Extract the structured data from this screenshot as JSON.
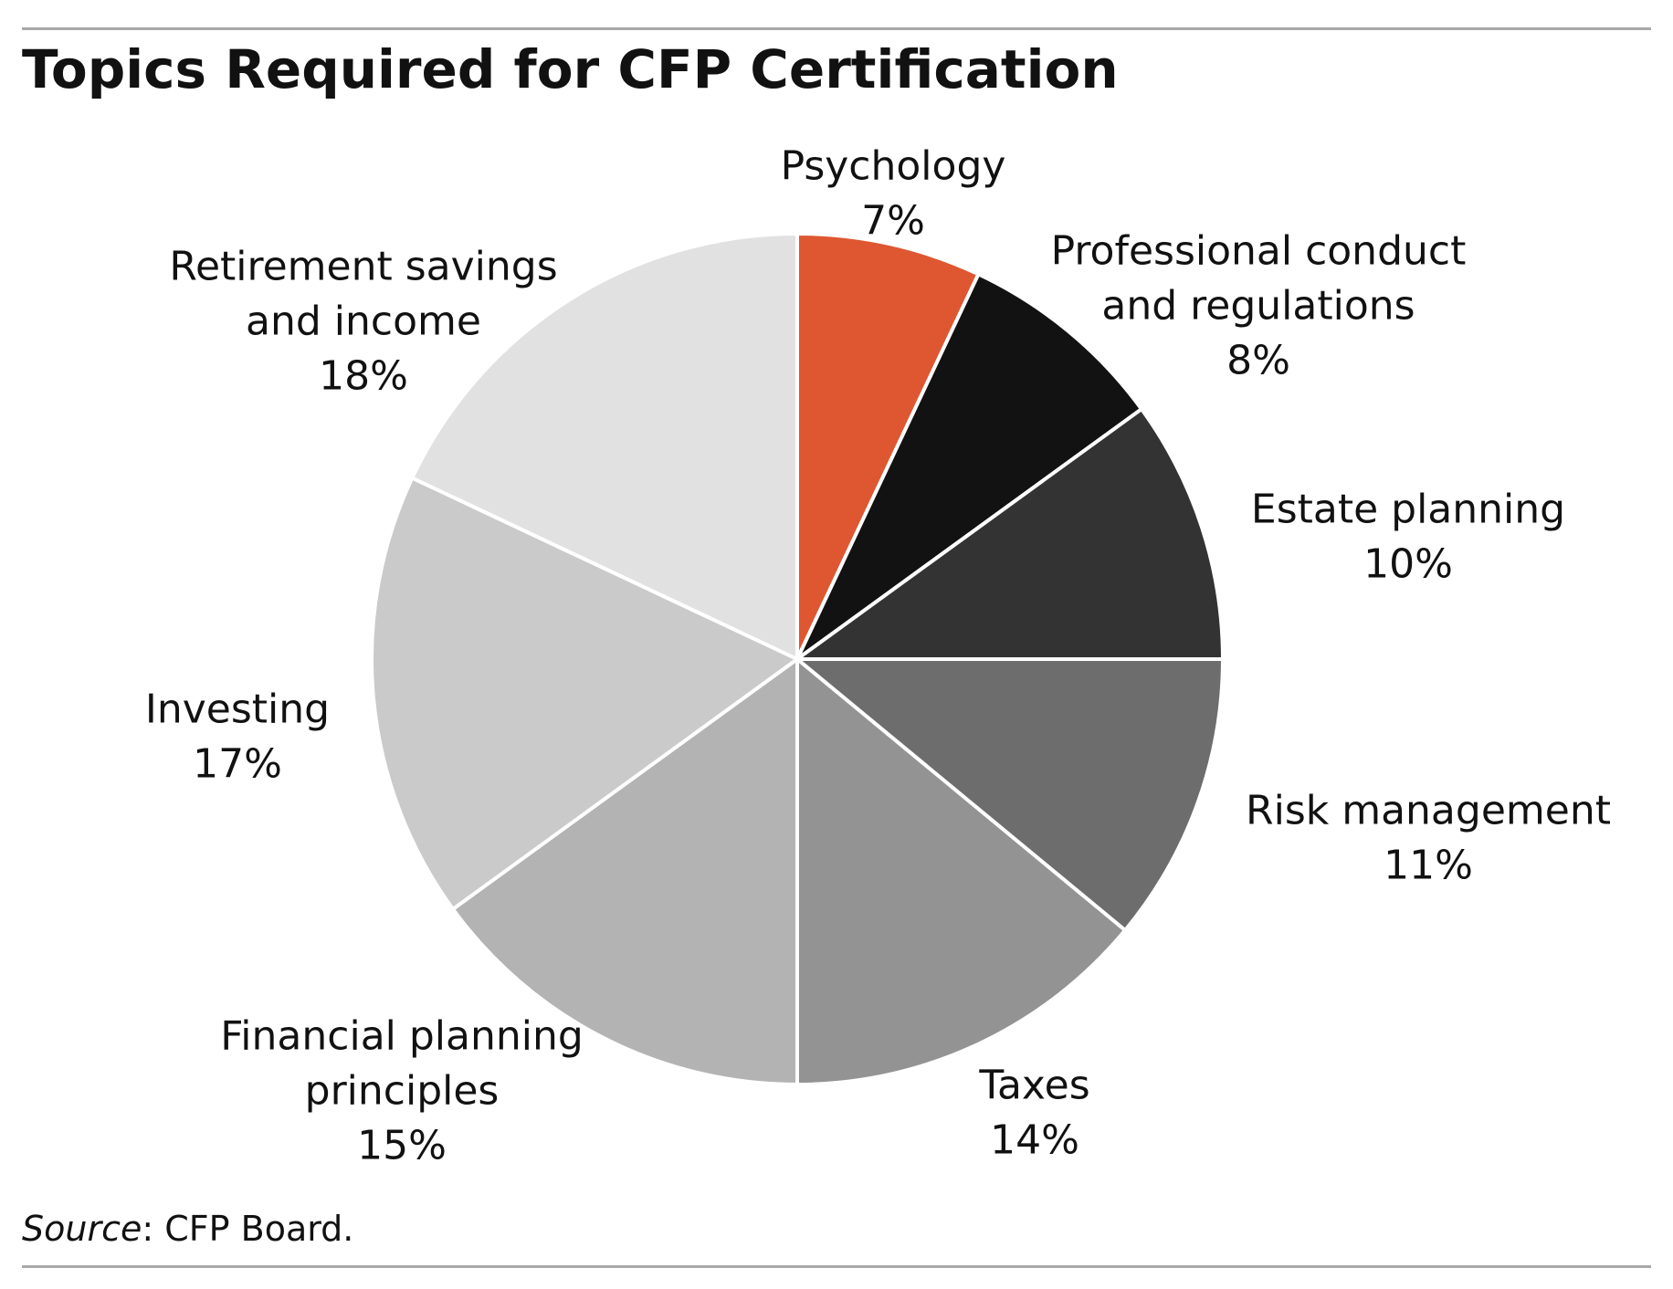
{
  "title": "Topics Required for CFP Certification",
  "source": {
    "label": "Source",
    "text": ": CFP Board."
  },
  "colors": {
    "rule": "#a8a8a8",
    "slice_border": "#ffffff",
    "text": "#111111"
  },
  "chart_data": {
    "type": "pie",
    "title": "Topics Required for CFP Certification",
    "start": "12 o'clock",
    "direction": "clockwise",
    "slices": [
      {
        "label": [
          "Psychology"
        ],
        "value": 7,
        "display": "7%",
        "color": "#de5731"
      },
      {
        "label": [
          "Professional conduct",
          "and regulations"
        ],
        "value": 8,
        "display": "8%",
        "color": "#121212"
      },
      {
        "label": [
          "Estate planning"
        ],
        "value": 10,
        "display": "10%",
        "color": "#333333"
      },
      {
        "label": [
          "Risk management"
        ],
        "value": 11,
        "display": "11%",
        "color": "#6d6d6d"
      },
      {
        "label": [
          "Taxes"
        ],
        "value": 14,
        "display": "14%",
        "color": "#939393"
      },
      {
        "label": [
          "Financial planning",
          "principles"
        ],
        "value": 15,
        "display": "15%",
        "color": "#b3b3b3"
      },
      {
        "label": [
          "Investing"
        ],
        "value": 17,
        "display": "17%",
        "color": "#cacaca"
      },
      {
        "label": [
          "Retirement savings",
          "and income"
        ],
        "value": 18,
        "display": "18%",
        "color": "#e1e1e1"
      }
    ]
  }
}
